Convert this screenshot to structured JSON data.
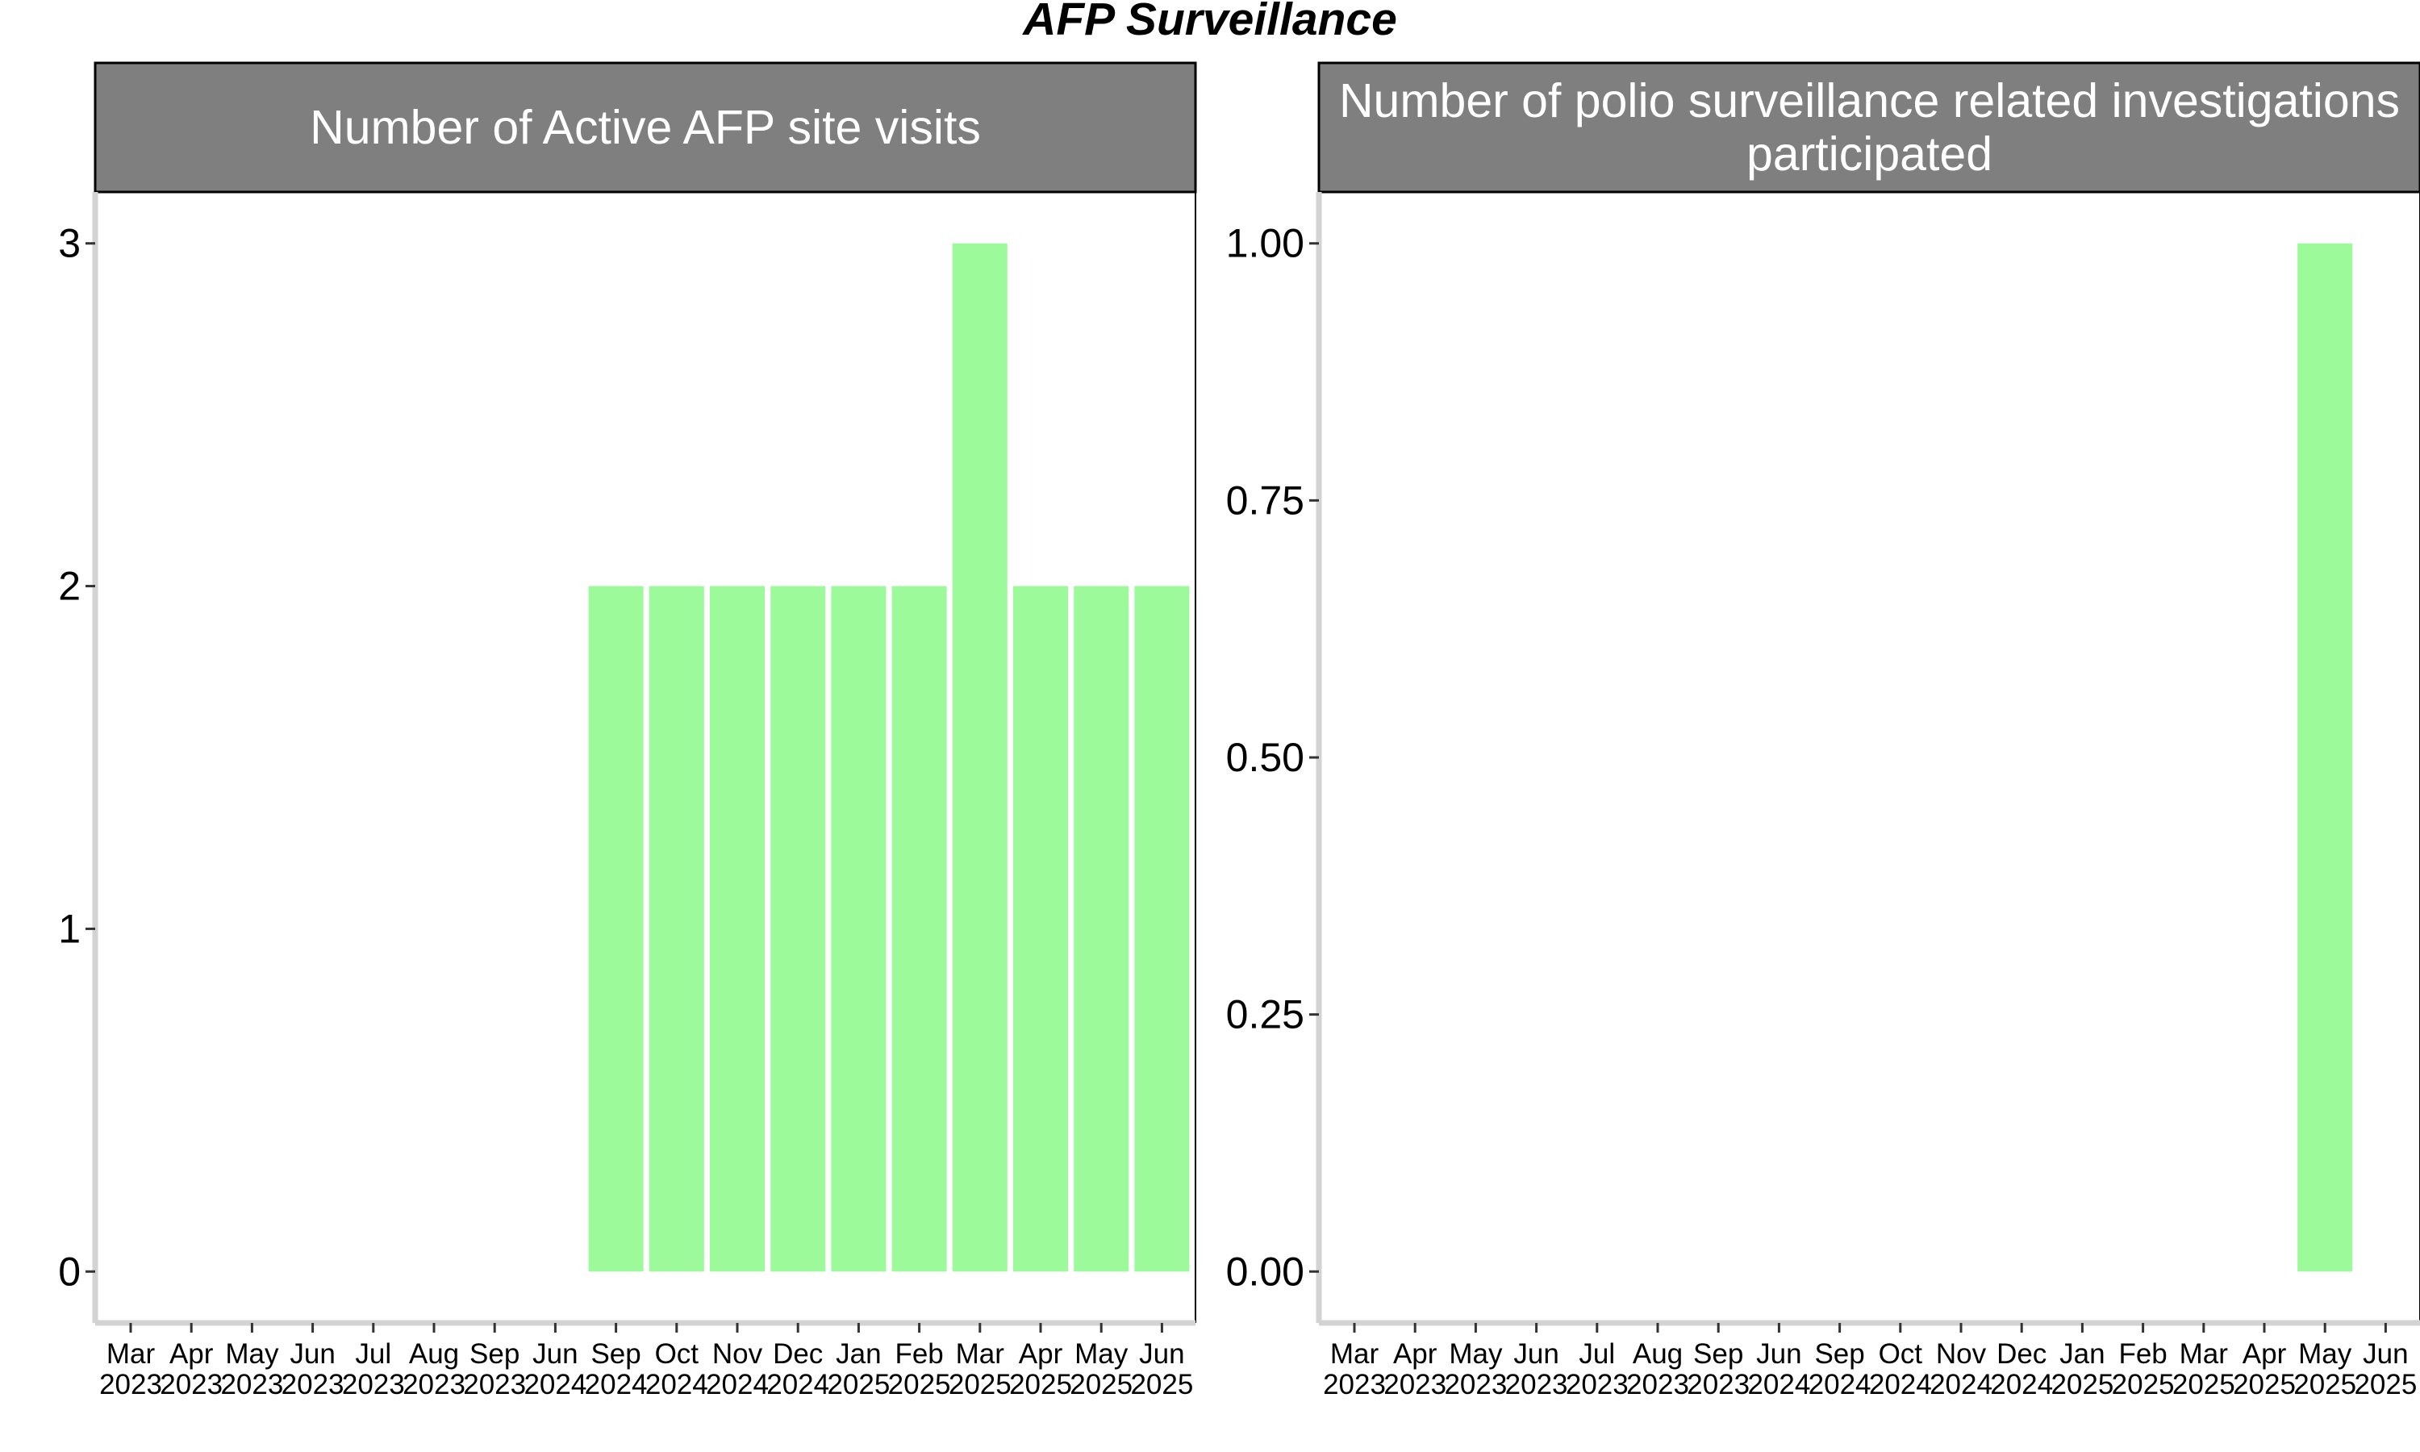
{
  "title": "AFP Surveillance",
  "colors": {
    "bar": "#9cfa9a",
    "strip": "#7f7f7f",
    "axis_line": "#d3d3d3",
    "frame": "#000000",
    "text": "#000000"
  },
  "chart_data": [
    {
      "type": "bar",
      "title": "Number of Active AFP site visits",
      "title_lines": [
        "Number of Active AFP site visits"
      ],
      "categories": [
        [
          "Mar",
          "2023"
        ],
        [
          "Apr",
          "2023"
        ],
        [
          "May",
          "2023"
        ],
        [
          "Jun",
          "2023"
        ],
        [
          "Jul",
          "2023"
        ],
        [
          "Aug",
          "2023"
        ],
        [
          "Sep",
          "2023"
        ],
        [
          "Jun",
          "2024"
        ],
        [
          "Sep",
          "2024"
        ],
        [
          "Oct",
          "2024"
        ],
        [
          "Nov",
          "2024"
        ],
        [
          "Dec",
          "2024"
        ],
        [
          "Jan",
          "2025"
        ],
        [
          "Feb",
          "2025"
        ],
        [
          "Mar",
          "2025"
        ],
        [
          "Apr",
          "2025"
        ],
        [
          "May",
          "2025"
        ],
        [
          "Jun",
          "2025"
        ]
      ],
      "values": [
        0,
        0,
        0,
        0,
        0,
        0,
        0,
        0,
        2,
        2,
        2,
        2,
        2,
        2,
        3,
        2,
        2,
        2
      ],
      "yticks": [
        0,
        1,
        2,
        3
      ],
      "ytick_labels": [
        "0",
        "1",
        "2",
        "3"
      ],
      "ylim": [
        -0.15,
        3.15
      ],
      "grid": false
    },
    {
      "type": "bar",
      "title": "Number of polio surveillance related investigations participated",
      "title_lines": [
        "Number of polio surveillance related investigations",
        "participated"
      ],
      "categories": [
        [
          "Mar",
          "2023"
        ],
        [
          "Apr",
          "2023"
        ],
        [
          "May",
          "2023"
        ],
        [
          "Jun",
          "2023"
        ],
        [
          "Jul",
          "2023"
        ],
        [
          "Aug",
          "2023"
        ],
        [
          "Sep",
          "2023"
        ],
        [
          "Jun",
          "2024"
        ],
        [
          "Sep",
          "2024"
        ],
        [
          "Oct",
          "2024"
        ],
        [
          "Nov",
          "2024"
        ],
        [
          "Dec",
          "2024"
        ],
        [
          "Jan",
          "2025"
        ],
        [
          "Feb",
          "2025"
        ],
        [
          "Mar",
          "2025"
        ],
        [
          "Apr",
          "2025"
        ],
        [
          "May",
          "2025"
        ],
        [
          "Jun",
          "2025"
        ]
      ],
      "values": [
        0,
        0,
        0,
        0,
        0,
        0,
        0,
        0,
        0,
        0,
        0,
        0,
        0,
        0,
        0,
        0,
        1,
        0
      ],
      "yticks": [
        0,
        0.25,
        0.5,
        0.75,
        1
      ],
      "ytick_labels": [
        "0.00",
        "0.25",
        "0.50",
        "0.75",
        "1.00"
      ],
      "ylim": [
        -0.05,
        1.05
      ],
      "grid": false
    }
  ]
}
